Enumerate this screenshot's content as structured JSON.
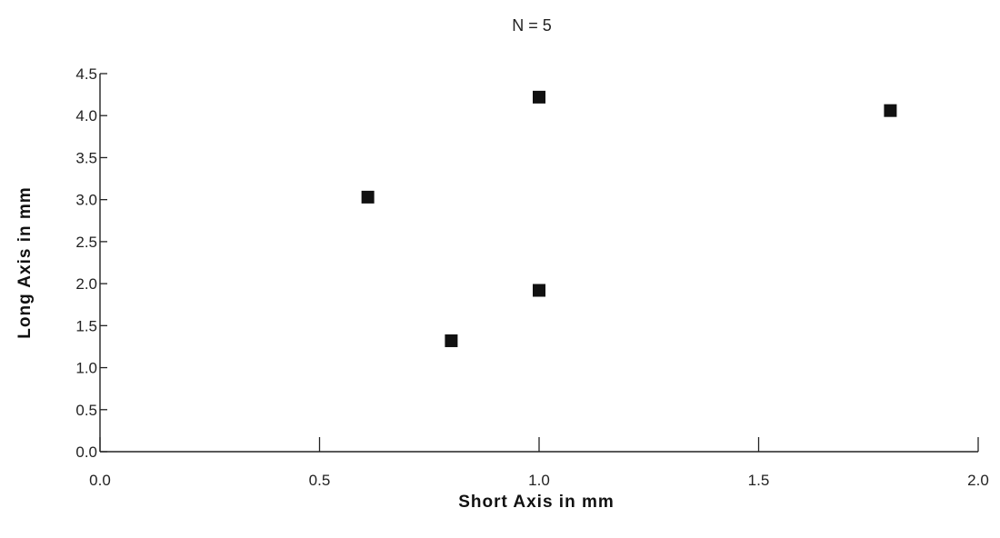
{
  "chart_data": {
    "type": "scatter",
    "title": "N = 5",
    "xlabel": "Short Axis in mm",
    "ylabel": "Long Axis in mm",
    "xlim": [
      0.0,
      2.0
    ],
    "ylim": [
      0.0,
      4.5
    ],
    "x_ticks": [
      "0.0",
      "0.5",
      "1.0",
      "1.5",
      "2.0"
    ],
    "y_ticks": [
      "0.0",
      "0.5",
      "1.0",
      "1.5",
      "2.0",
      "2.5",
      "3.0",
      "3.5",
      "4.0",
      "4.5"
    ],
    "grid": false,
    "marker": "square",
    "series": [
      {
        "points": [
          {
            "x": 0.61,
            "y": 3.03
          },
          {
            "x": 0.8,
            "y": 1.32
          },
          {
            "x": 1.0,
            "y": 4.22
          },
          {
            "x": 1.0,
            "y": 1.92
          },
          {
            "x": 1.8,
            "y": 4.06
          }
        ]
      }
    ]
  }
}
